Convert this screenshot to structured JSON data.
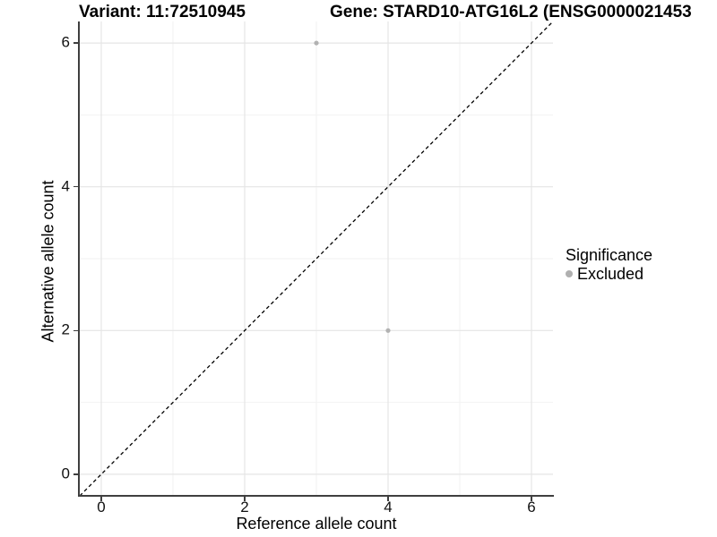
{
  "figure": {
    "background": "#ffffff"
  },
  "titles": {
    "variant": "Variant: 11:72510945",
    "gene": "Gene: STARD10-ATG16L2 (ENSG0000021453"
  },
  "legend": {
    "title": "Significance",
    "items": [
      {
        "label": "Excluded",
        "marker": "circle",
        "color": "#b2b2b2"
      }
    ]
  },
  "chart_data": {
    "type": "scatter",
    "xlabel": "Reference allele count",
    "ylabel": "Alternative allele count",
    "x_ticks": [
      0,
      2,
      4,
      6
    ],
    "y_ticks": [
      0,
      2,
      4,
      6
    ],
    "x_minor_ticks": [
      1,
      3,
      5
    ],
    "y_minor_ticks": [
      1,
      3,
      5
    ],
    "xlim": [
      -0.3,
      6.3
    ],
    "ylim": [
      -0.3,
      6.3
    ],
    "grid": true,
    "legend_position": "right",
    "series": [
      {
        "name": "Excluded",
        "color": "#b2b2b2",
        "points": [
          {
            "x": 3,
            "y": 6
          },
          {
            "x": 4,
            "y": 2
          }
        ]
      }
    ],
    "reference_line": {
      "type": "identity",
      "style": "dashed",
      "color": "#000000"
    },
    "colors": {
      "grid_major": "#e5e5e5",
      "grid_minor": "#f2f2f2",
      "axis_line": "#3f3f3f",
      "point": "#b2b2b2"
    }
  }
}
